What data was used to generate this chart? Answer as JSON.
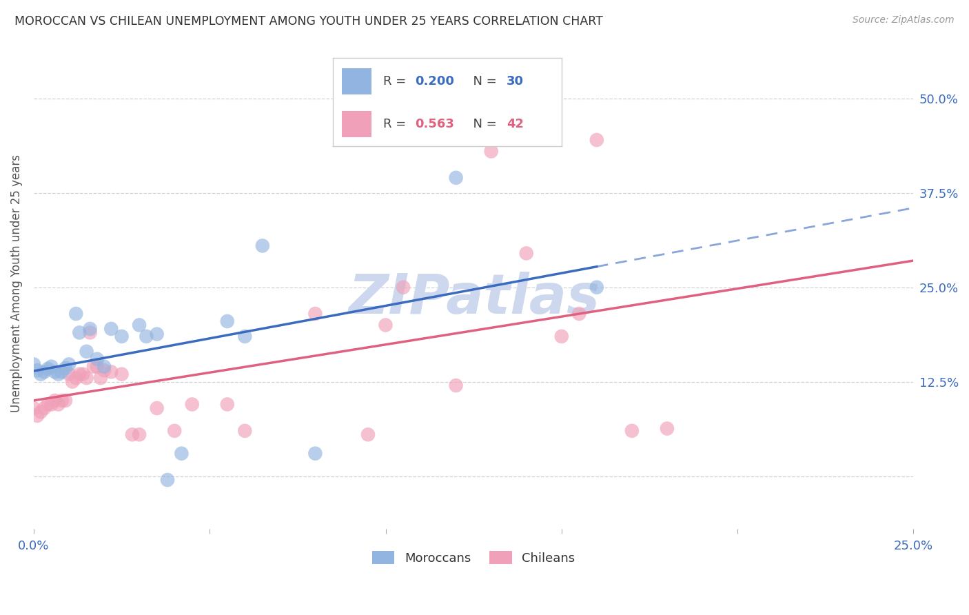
{
  "title": "MOROCCAN VS CHILEAN UNEMPLOYMENT AMONG YOUTH UNDER 25 YEARS CORRELATION CHART",
  "source": "Source: ZipAtlas.com",
  "ylabel": "Unemployment Among Youth under 25 years",
  "xlim": [
    0.0,
    0.25
  ],
  "ylim": [
    -0.07,
    0.58
  ],
  "xticks": [
    0.0,
    0.05,
    0.1,
    0.15,
    0.2,
    0.25
  ],
  "yticks": [
    0.0,
    0.125,
    0.25,
    0.375,
    0.5
  ],
  "xticklabels": [
    "0.0%",
    "",
    "",
    "",
    "",
    "25.0%"
  ],
  "ylabels_right": [
    "",
    "12.5%",
    "25.0%",
    "37.5%",
    "50.0%"
  ],
  "moroccan_R": 0.2,
  "moroccan_N": 30,
  "chilean_R": 0.563,
  "chilean_N": 42,
  "moroccan_color": "#92b4e0",
  "chilean_color": "#f0a0b8",
  "moroccan_line_color": "#3a6bbf",
  "chilean_line_color": "#e06080",
  "moroccan_x": [
    0.0,
    0.001,
    0.002,
    0.003,
    0.004,
    0.005,
    0.006,
    0.007,
    0.008,
    0.009,
    0.01,
    0.012,
    0.013,
    0.015,
    0.016,
    0.018,
    0.02,
    0.022,
    0.025,
    0.03,
    0.032,
    0.035,
    0.038,
    0.042,
    0.055,
    0.06,
    0.065,
    0.08,
    0.12,
    0.16
  ],
  "moroccan_y": [
    0.148,
    0.14,
    0.135,
    0.138,
    0.142,
    0.145,
    0.138,
    0.135,
    0.138,
    0.143,
    0.148,
    0.215,
    0.19,
    0.165,
    0.195,
    0.155,
    0.145,
    0.195,
    0.185,
    0.2,
    0.185,
    0.188,
    -0.005,
    0.03,
    0.205,
    0.185,
    0.305,
    0.03,
    0.395,
    0.25
  ],
  "chilean_x": [
    0.0,
    0.001,
    0.002,
    0.003,
    0.004,
    0.005,
    0.006,
    0.007,
    0.008,
    0.009,
    0.01,
    0.011,
    0.012,
    0.013,
    0.014,
    0.015,
    0.016,
    0.017,
    0.018,
    0.019,
    0.02,
    0.022,
    0.025,
    0.028,
    0.03,
    0.035,
    0.04,
    0.045,
    0.055,
    0.06,
    0.08,
    0.095,
    0.1,
    0.105,
    0.12,
    0.13,
    0.14,
    0.15,
    0.155,
    0.16,
    0.17,
    0.18
  ],
  "chilean_y": [
    0.09,
    0.08,
    0.085,
    0.09,
    0.095,
    0.095,
    0.1,
    0.095,
    0.1,
    0.1,
    0.135,
    0.125,
    0.13,
    0.135,
    0.135,
    0.13,
    0.19,
    0.145,
    0.145,
    0.13,
    0.14,
    0.138,
    0.135,
    0.055,
    0.055,
    0.09,
    0.06,
    0.095,
    0.095,
    0.06,
    0.215,
    0.055,
    0.2,
    0.25,
    0.12,
    0.43,
    0.295,
    0.185,
    0.215,
    0.445,
    0.06,
    0.063
  ],
  "background_color": "#ffffff",
  "grid_color": "#cccccc",
  "watermark_color": "#cdd8ee",
  "legend_box_color": "#f5f5f5",
  "legend_border_color": "#cccccc",
  "tick_color": "#3a6bbf",
  "title_color": "#333333",
  "source_color": "#999999",
  "ylabel_color": "#555555"
}
